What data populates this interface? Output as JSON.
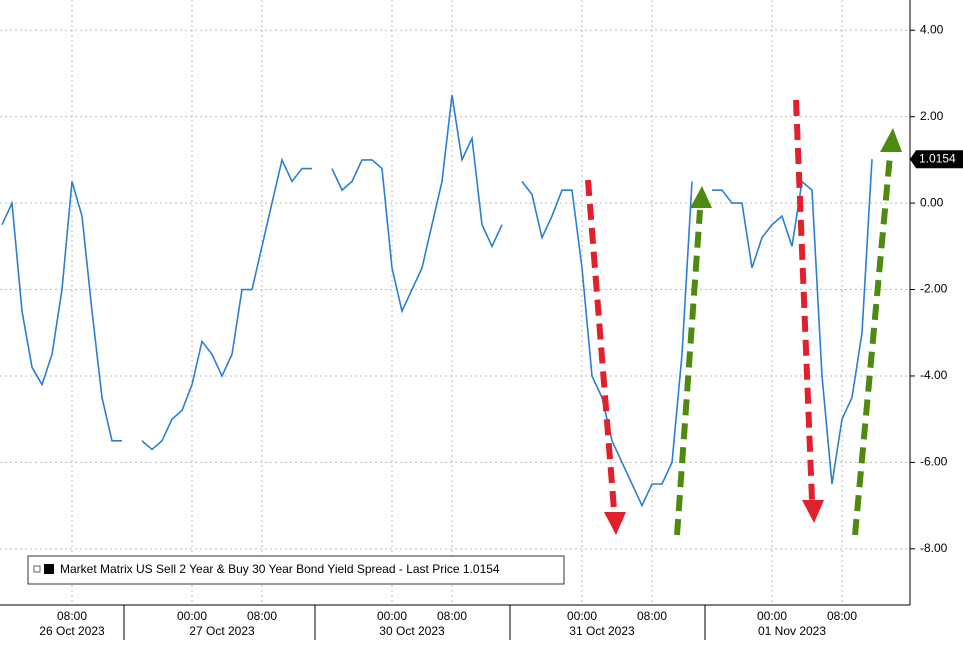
{
  "chart_data": {
    "type": "line",
    "categories": [
      null,
      null,
      null,
      null,
      null,
      null,
      null,
      "08:00",
      null,
      null,
      null,
      null,
      null,
      null,
      null,
      null,
      null,
      null,
      null,
      "00:00",
      null,
      null,
      null,
      null,
      null,
      null,
      "08:00",
      null,
      null,
      null,
      null,
      null,
      null,
      null,
      null,
      null,
      null,
      null,
      null,
      "00:00",
      null,
      null,
      null,
      null,
      null,
      "08:00",
      null,
      null,
      null,
      null,
      null,
      null,
      null,
      null,
      null,
      null,
      null,
      null,
      "00:00",
      null,
      null,
      null,
      null,
      null,
      null,
      "08:00",
      null,
      null,
      null,
      null,
      null,
      null,
      null,
      null,
      null,
      null,
      null,
      "00:00",
      null,
      null,
      null,
      null,
      null,
      null,
      "08:00",
      null,
      null,
      null
    ],
    "dates": [
      null,
      null,
      null,
      null,
      null,
      null,
      null,
      "26 Oct 2023",
      null,
      null,
      null,
      null,
      null,
      null,
      null,
      null,
      null,
      null,
      null,
      null,
      null,
      null,
      "27 Oct 2023",
      null,
      null,
      null,
      null,
      null,
      null,
      null,
      null,
      null,
      null,
      null,
      null,
      null,
      null,
      null,
      null,
      null,
      null,
      "30 Oct 2023",
      null,
      null,
      null,
      null,
      null,
      null,
      null,
      null,
      null,
      null,
      null,
      null,
      null,
      null,
      null,
      null,
      null,
      null,
      "31 Oct 2023",
      null,
      null,
      null,
      null,
      null,
      null,
      null,
      null,
      null,
      null,
      null,
      null,
      null,
      null,
      null,
      null,
      null,
      null,
      "01 Nov 2023",
      null,
      null,
      null,
      null,
      null,
      null,
      null,
      null
    ],
    "series": [
      {
        "name": "Market Matrix US Sell 2 Year & Buy 30 Year Bond Yield Spread - Last Price 1.0154",
        "color": "#2a7fd4",
        "values": [
          -0.5,
          0.0,
          -2.5,
          -3.8,
          -4.2,
          -3.5,
          -2.0,
          0.5,
          -0.3,
          -2.5,
          -4.5,
          -5.5,
          -5.5,
          null,
          -5.5,
          -5.7,
          -5.5,
          -5.0,
          -4.8,
          -4.2,
          -3.2,
          -3.5,
          -4.0,
          -3.5,
          -2.0,
          -2.0,
          -1.0,
          0.0,
          1.0,
          0.5,
          0.8,
          0.8,
          null,
          0.8,
          0.3,
          0.5,
          1.0,
          1.0,
          0.8,
          -1.5,
          -2.5,
          -2.0,
          -1.5,
          -0.5,
          0.5,
          2.5,
          1.0,
          1.5,
          -0.5,
          -1.0,
          -0.5,
          null,
          0.5,
          0.2,
          -0.8,
          -0.3,
          0.3,
          0.3,
          -1.5,
          -4.0,
          -4.5,
          -5.5,
          -6.0,
          -6.5,
          -7.0,
          -6.5,
          -6.5,
          -6.0,
          -3.5,
          0.5,
          null,
          0.3,
          0.3,
          0.0,
          0.0,
          -1.5,
          -0.8,
          -0.5,
          -0.3,
          -1.0,
          0.5,
          0.3,
          -4.0,
          -6.5,
          -5.0,
          -4.5,
          -3.0,
          1.0154
        ]
      }
    ],
    "ylim": [
      -9.3,
      4.7
    ],
    "yticks": [
      {
        "value": 4,
        "label": "4.00"
      },
      {
        "value": 2,
        "label": "2.00"
      },
      {
        "value": 0,
        "label": "0.00"
      },
      {
        "value": -2,
        "label": "-2.00"
      },
      {
        "value": -4,
        "label": "-4.00"
      },
      {
        "value": -6,
        "label": "-6.00"
      },
      {
        "value": -8,
        "label": "-8.00"
      }
    ],
    "grid": true
  }
}
